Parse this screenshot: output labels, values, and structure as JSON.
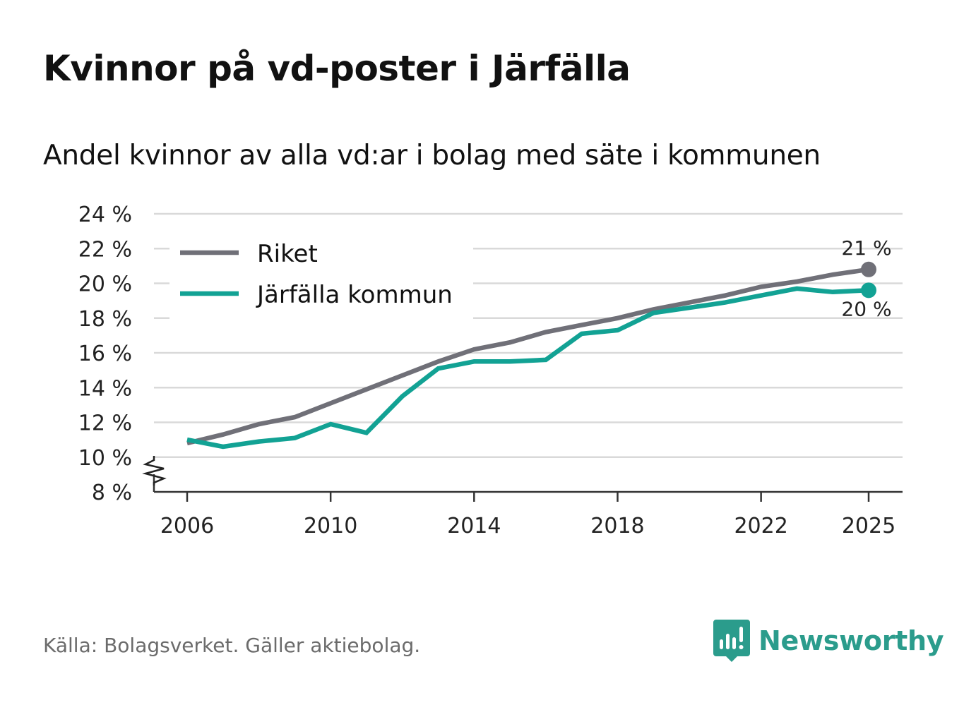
{
  "header": {
    "title": "Kvinnor på vd-poster i Järfälla",
    "subtitle": "Andel kvinnor av alla vd:ar i bolag med säte i kommunen"
  },
  "footer": {
    "source": "Källa: Bolagsverket. Gäller aktiebolag.",
    "brand": "Newsworthy"
  },
  "colors": {
    "riket": "#707078",
    "jarfalla": "#12a294",
    "grid": "#d9d9d9",
    "axis": "#333333",
    "brand": "#2b9c8c"
  },
  "chart_data": {
    "type": "line",
    "title": "Kvinnor på vd-poster i Järfälla",
    "subtitle": "Andel kvinnor av alla vd:ar i bolag med säte i kommunen",
    "xlabel": "",
    "ylabel": "",
    "x": [
      2006,
      2007,
      2008,
      2009,
      2010,
      2011,
      2012,
      2013,
      2014,
      2015,
      2016,
      2017,
      2018,
      2019,
      2020,
      2021,
      2022,
      2023,
      2024,
      2025
    ],
    "series": [
      {
        "name": "Riket",
        "color": "#707078",
        "values": [
          10.8,
          11.3,
          11.9,
          12.3,
          13.1,
          13.9,
          14.7,
          15.5,
          16.2,
          16.6,
          17.2,
          17.6,
          18.0,
          18.5,
          18.9,
          19.3,
          19.8,
          20.1,
          20.5,
          20.8
        ],
        "end_label": "21 %"
      },
      {
        "name": "Järfälla kommun",
        "color": "#12a294",
        "values": [
          11.0,
          10.6,
          10.9,
          11.1,
          11.9,
          11.4,
          13.5,
          15.1,
          15.5,
          15.5,
          15.6,
          17.1,
          17.3,
          18.3,
          18.6,
          18.9,
          19.3,
          19.7,
          19.5,
          19.6
        ],
        "end_label": "20 %"
      }
    ],
    "xticks": [
      2006,
      2010,
      2014,
      2018,
      2022,
      2025
    ],
    "xtick_labels": [
      "2006",
      "2010",
      "2014",
      "2018",
      "2022",
      "2025"
    ],
    "yticks": [
      8,
      10,
      12,
      14,
      16,
      18,
      20,
      22,
      24
    ],
    "ytick_labels": [
      "8 %",
      "10 %",
      "12 %",
      "14 %",
      "16 %",
      "18 %",
      "20 %",
      "22 %",
      "24 %"
    ],
    "ylim": [
      8,
      24
    ],
    "xlim": [
      2006,
      2025
    ],
    "grid": true,
    "axis_break": true,
    "legend": {
      "position": "top-left",
      "entries": [
        "Riket",
        "Järfälla kommun"
      ]
    }
  }
}
